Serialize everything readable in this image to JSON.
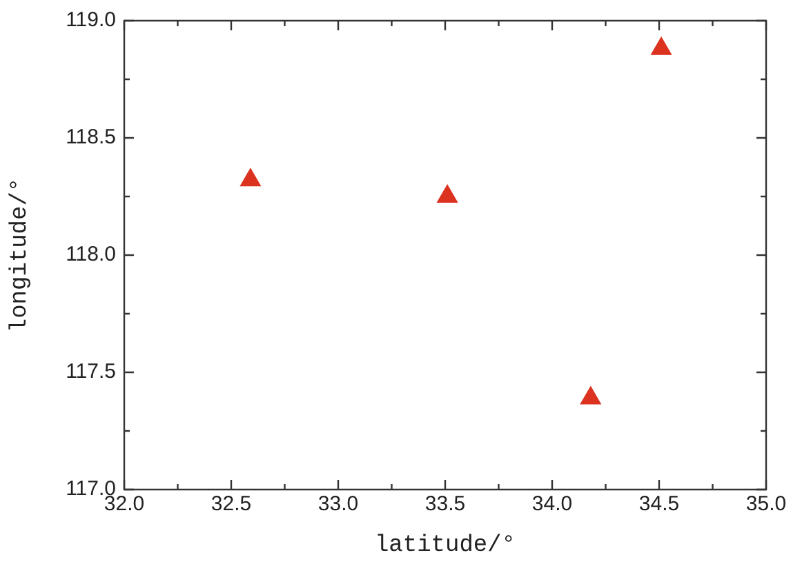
{
  "chart_data": {
    "type": "scatter",
    "xlabel": "latitude/°",
    "ylabel": "longitude/°",
    "series": [
      {
        "color": "#dc3220",
        "x": [
          32.59,
          33.51,
          34.18,
          34.51
        ],
        "values": [
          118.32,
          118.25,
          117.39,
          118.88
        ]
      }
    ],
    "marker": "triangle",
    "xlim": [
      32.0,
      35.0
    ],
    "xticks": [
      {
        "value": 32.0,
        "label": "32.0"
      },
      {
        "value": 32.25,
        "label": null
      },
      {
        "value": 32.5,
        "label": "32.5"
      },
      {
        "value": 32.75,
        "label": null
      },
      {
        "value": 33.0,
        "label": "33.0"
      },
      {
        "value": 33.25,
        "label": null
      },
      {
        "value": 33.5,
        "label": "33.5"
      },
      {
        "value": 33.75,
        "label": null
      },
      {
        "value": 34.0,
        "label": "34.0"
      },
      {
        "value": 34.25,
        "label": null
      },
      {
        "value": 34.5,
        "label": "34.5"
      },
      {
        "value": 34.75,
        "label": null
      },
      {
        "value": 35.0,
        "label": "35.0"
      }
    ],
    "ylim": [
      117.0,
      119.0
    ],
    "yticks": [
      {
        "value": 117.0,
        "label": "117.0"
      },
      {
        "value": 117.25,
        "label": null
      },
      {
        "value": 117.5,
        "label": "117.5"
      },
      {
        "value": 117.75,
        "label": null
      },
      {
        "value": 118.0,
        "label": "118.0"
      },
      {
        "value": 118.25,
        "label": null
      },
      {
        "value": 118.5,
        "label": "118.5"
      },
      {
        "value": 118.75,
        "label": null
      },
      {
        "value": 119.0,
        "label": "119.0"
      }
    ],
    "grid": false,
    "legend": false
  }
}
